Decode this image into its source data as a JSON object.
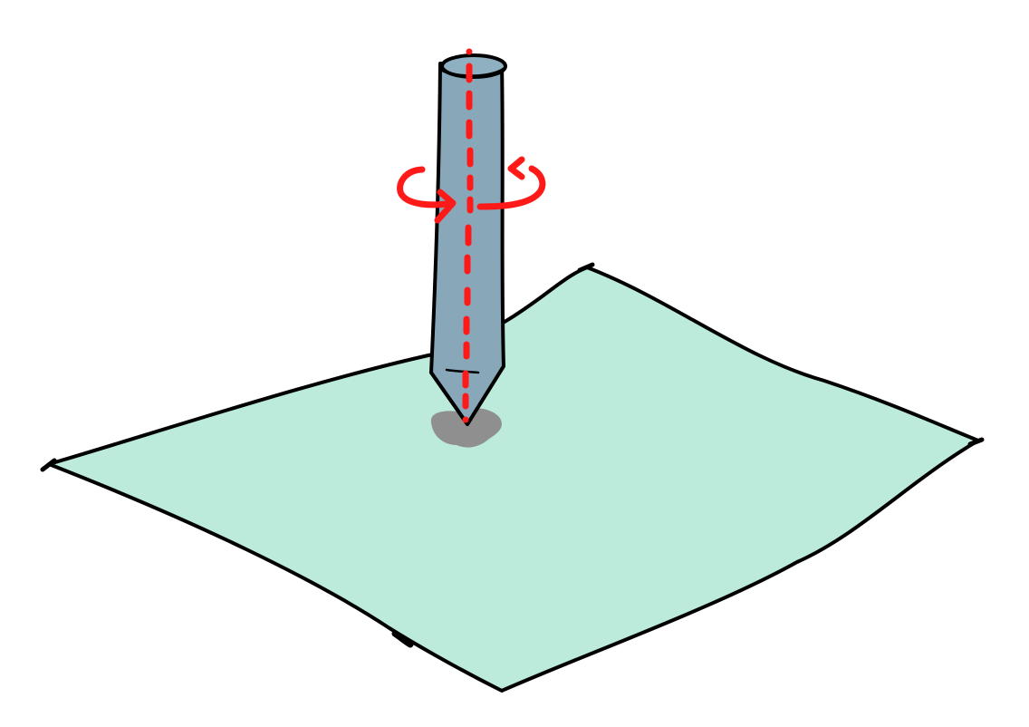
{
  "diagram": {
    "subject": "pen-tip-on-surface-with-barrel-rotation",
    "colors": {
      "background": "#ffffff",
      "surface_fill": "#bcebdc",
      "pen_fill": "#88a8ba",
      "pen_cap_fill": "#8fb0c1",
      "contact_shadow": "#8f8f8f",
      "outline": "#000000",
      "rotation_axis": "#ff1a1a",
      "rotation_arrow": "#ff1a1a"
    },
    "icons": [
      "surface-plane",
      "pen-barrel",
      "pen-tip",
      "contact-shadow",
      "rotation-axis",
      "rotation-arrow"
    ]
  }
}
